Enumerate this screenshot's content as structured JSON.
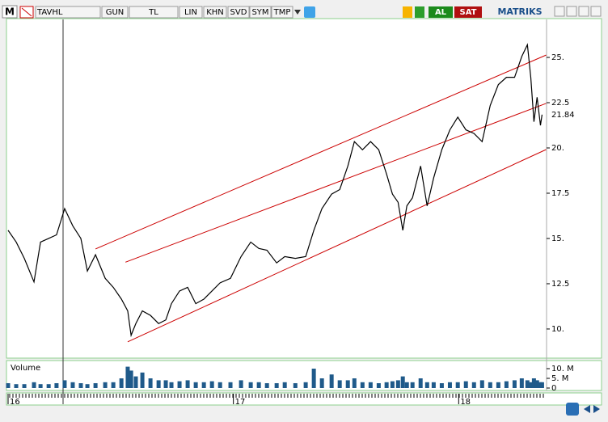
{
  "toolbar": {
    "logo": "M",
    "symbol": "TAVHL",
    "buttons": [
      "GUN",
      "TL",
      "LIN",
      "KHN",
      "SVD",
      "SYM",
      "TMP"
    ],
    "buy": "AL",
    "sell": "SAT",
    "brand": "MATRIKS"
  },
  "chart_data": [
    {
      "type": "line",
      "color": "#000000",
      "x": [
        2016.0,
        2016.036,
        2016.072,
        2016.115,
        2016.144,
        2016.18,
        2016.215,
        2016.251,
        2016.287,
        2016.323,
        2016.352,
        2016.388,
        2016.431,
        2016.467,
        2016.503,
        2016.531,
        2016.546,
        2016.567,
        2016.596,
        2016.632,
        2016.668,
        2016.7,
        2016.725,
        2016.761,
        2016.797,
        2016.833,
        2016.869,
        2016.905,
        2016.941,
        2016.987,
        2017.034,
        2017.077,
        2017.113,
        2017.149,
        2017.192,
        2017.228,
        2017.275,
        2017.321,
        2017.357,
        2017.393,
        2017.436,
        2017.472,
        2017.508,
        2017.537,
        2017.573,
        2017.609,
        2017.645,
        2017.68,
        2017.706,
        2017.731,
        2017.752,
        2017.77,
        2017.795,
        2017.831,
        2017.86,
        2017.889,
        2017.925,
        2017.961,
        2017.996,
        2018.032,
        2018.068,
        2018.104,
        2018.14,
        2018.176,
        2018.212,
        2018.248,
        2018.28,
        2018.305,
        2018.32,
        2018.334,
        2018.348,
        2018.363,
        2018.37
      ],
      "values": [
        15.45,
        14.8,
        13.9,
        12.6,
        14.8,
        15.0,
        15.2,
        16.65,
        15.7,
        15.0,
        13.2,
        14.1,
        12.8,
        12.3,
        11.65,
        11.0,
        9.65,
        10.3,
        11.0,
        10.75,
        10.3,
        10.5,
        11.4,
        12.1,
        12.3,
        11.4,
        11.65,
        12.1,
        12.55,
        12.8,
        14.0,
        14.8,
        14.45,
        14.35,
        13.65,
        14.0,
        13.9,
        14.0,
        15.45,
        16.65,
        17.45,
        17.7,
        19.0,
        20.35,
        19.9,
        20.35,
        19.9,
        18.55,
        17.45,
        17.0,
        15.45,
        16.8,
        17.25,
        19.0,
        16.8,
        18.35,
        19.9,
        21.0,
        21.7,
        21.0,
        20.8,
        20.35,
        22.35,
        23.5,
        23.9,
        23.9,
        25.05,
        25.7,
        23.9,
        21.45,
        22.8,
        21.25,
        21.84
      ],
      "lines": [
        {
          "color": "#cc0000",
          "x": [
            2016.388,
            2018.388
          ],
          "values": [
            14.42,
            25.13
          ]
        },
        {
          "color": "#cc0000",
          "x": [
            2016.521,
            2018.388
          ],
          "values": [
            13.69,
            22.46
          ]
        },
        {
          "color": "#cc0000",
          "x": [
            2016.531,
            2018.388
          ],
          "values": [
            9.29,
            19.91
          ]
        }
      ],
      "current_price": 21.84,
      "xlim": [
        2016.0,
        2018.39
      ],
      "ylim": [
        8.39,
        27.1
      ],
      "yticks": [
        {
          "value": 10,
          "label": "10."
        },
        12.5,
        {
          "value": 15,
          "label": "15."
        },
        17.5,
        {
          "value": 20,
          "label": "20."
        },
        22.5,
        {
          "value": 25,
          "label": "25."
        }
      ],
      "xticks": [
        {
          "value": 2016,
          "label": "16"
        },
        {
          "value": 2017,
          "label": "17"
        },
        {
          "value": 2018,
          "label": "18"
        }
      ]
    },
    {
      "type": "bar",
      "title": "Volume",
      "color": "#1f5a8a",
      "x": [
        2016.0,
        2016.036,
        2016.072,
        2016.115,
        2016.144,
        2016.18,
        2016.215,
        2016.251,
        2016.287,
        2016.323,
        2016.352,
        2016.388,
        2016.431,
        2016.467,
        2016.503,
        2016.531,
        2016.546,
        2016.567,
        2016.596,
        2016.632,
        2016.668,
        2016.7,
        2016.725,
        2016.761,
        2016.797,
        2016.833,
        2016.869,
        2016.905,
        2016.941,
        2016.987,
        2017.034,
        2017.077,
        2017.113,
        2017.149,
        2017.192,
        2017.228,
        2017.275,
        2017.321,
        2017.357,
        2017.393,
        2017.436,
        2017.472,
        2017.508,
        2017.537,
        2017.573,
        2017.609,
        2017.645,
        2017.68,
        2017.706,
        2017.731,
        2017.752,
        2017.77,
        2017.795,
        2017.831,
        2017.86,
        2017.889,
        2017.925,
        2017.961,
        2017.996,
        2018.032,
        2018.068,
        2018.104,
        2018.14,
        2018.176,
        2018.212,
        2018.248,
        2018.28,
        2018.305,
        2018.32,
        2018.334,
        2018.348,
        2018.363,
        2018.37
      ],
      "values": [
        2.5,
        2,
        2,
        3,
        2,
        2,
        2.5,
        4,
        3,
        2.5,
        2,
        2.5,
        3,
        3,
        5,
        11,
        9,
        6,
        8,
        5,
        4,
        4,
        3,
        3.5,
        4,
        3,
        3,
        3.5,
        3,
        3,
        4,
        3,
        3,
        2.5,
        2.5,
        3,
        2.5,
        3,
        10,
        5,
        7,
        4,
        4,
        5,
        3,
        3,
        2.5,
        3,
        3.5,
        4,
        6,
        3,
        3,
        5,
        3,
        3,
        2.5,
        3,
        3,
        3.5,
        3,
        4,
        3,
        3,
        3.5,
        4,
        5,
        4,
        3,
        5,
        4,
        3,
        3
      ],
      "xlim": [
        2016.0,
        2018.39
      ],
      "ylim": [
        0,
        13.75
      ],
      "yticks": [
        {
          "value": 10,
          "label": "10. M"
        },
        {
          "value": 5,
          "label": "5. M"
        },
        0
      ]
    }
  ]
}
